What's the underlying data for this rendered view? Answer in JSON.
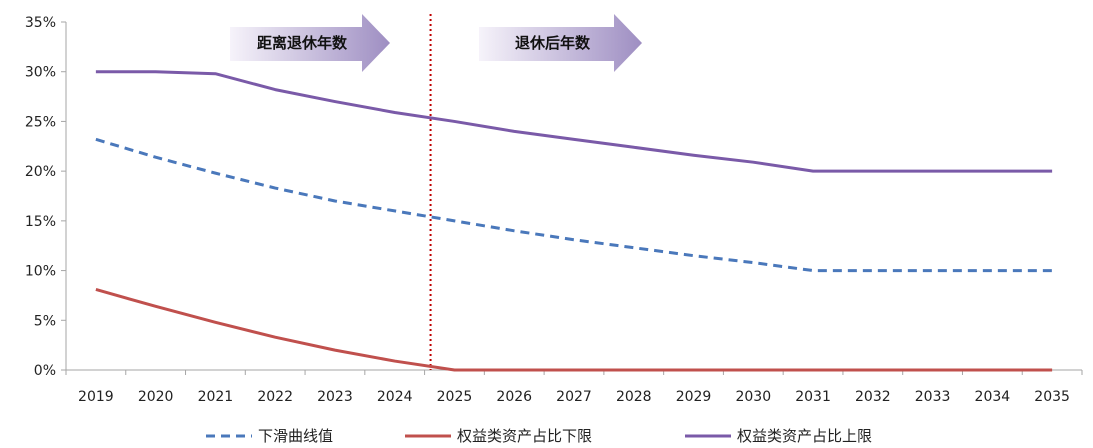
{
  "chart_data": {
    "type": "line",
    "categories": [
      "2019",
      "2020",
      "2021",
      "2022",
      "2023",
      "2024",
      "2025",
      "2026",
      "2027",
      "2028",
      "2029",
      "2030",
      "2031",
      "2032",
      "2033",
      "2034",
      "2035"
    ],
    "ylim": [
      0,
      35
    ],
    "yticks": [
      "0%",
      "5%",
      "10%",
      "15%",
      "20%",
      "25%",
      "30%",
      "35%"
    ],
    "series": [
      {
        "name": "下滑曲线值",
        "color": "#4a78bb",
        "dash": true,
        "values": [
          23.2,
          21.4,
          19.8,
          18.3,
          17.0,
          16.0,
          15.0,
          14.0,
          13.1,
          12.3,
          11.5,
          10.8,
          10.0,
          10.0,
          10.0,
          10.0,
          10.0
        ]
      },
      {
        "name": "权益类资产占比下限",
        "color": "#c0504d",
        "dash": false,
        "values": [
          8.1,
          6.4,
          4.8,
          3.3,
          2.0,
          0.9,
          0.0,
          0.0,
          0.0,
          0.0,
          0.0,
          0.0,
          0.0,
          0.0,
          0.0,
          0.0,
          0.0
        ]
      },
      {
        "name": "权益类资产占比上限",
        "color": "#7a5aa8",
        "dash": false,
        "values": [
          30.0,
          30.0,
          29.8,
          28.2,
          27.0,
          25.9,
          25.0,
          24.0,
          23.2,
          22.4,
          21.6,
          20.9,
          20.0,
          20.0,
          20.0,
          20.0,
          20.0
        ]
      }
    ],
    "divider_x": 2024.6,
    "annotations": [
      {
        "text": "距离退休年数"
      },
      {
        "text": "退休后年数"
      }
    ],
    "grid": false,
    "legend_position": "bottom"
  }
}
